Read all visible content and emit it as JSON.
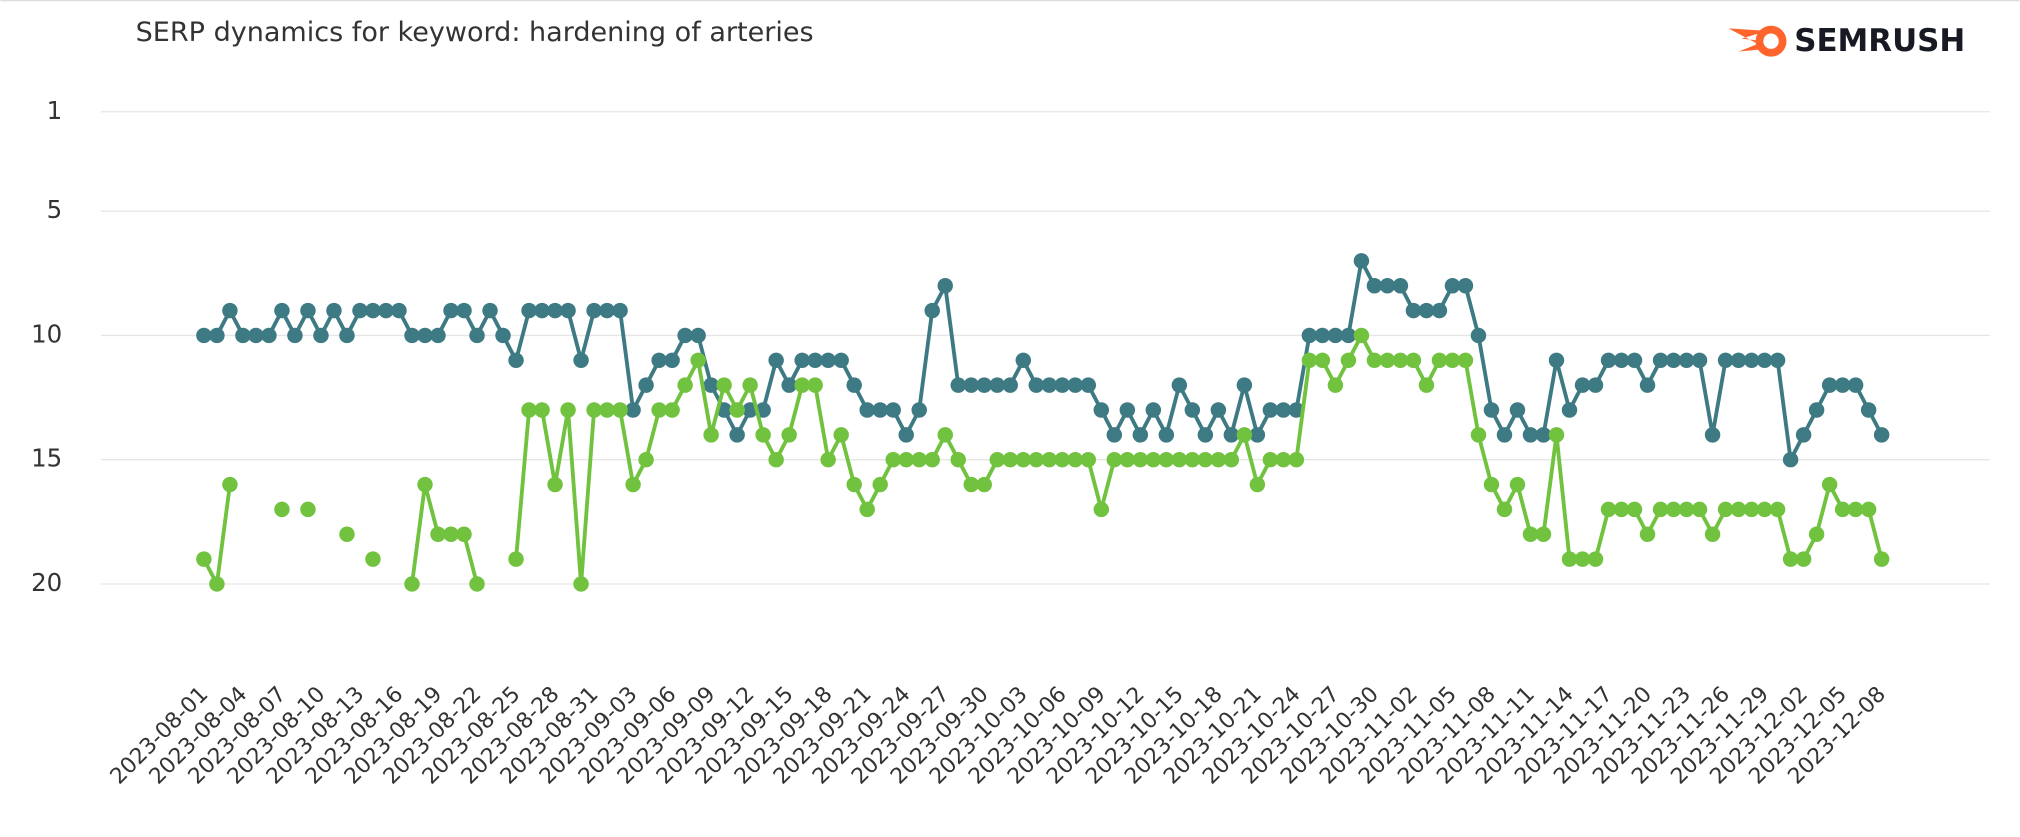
{
  "chart_data": {
    "type": "line",
    "title": "SERP dynamics for keyword: hardening of arteries",
    "logo": "SEMRUSH",
    "categories": [
      "2023-08-01",
      null,
      null,
      "2023-08-04",
      null,
      null,
      "2023-08-07",
      null,
      null,
      "2023-08-10",
      null,
      null,
      "2023-08-13",
      null,
      null,
      "2023-08-16",
      null,
      null,
      "2023-08-19",
      null,
      null,
      "2023-08-22",
      null,
      null,
      "2023-08-25",
      null,
      null,
      "2023-08-28",
      null,
      null,
      "2023-08-31",
      null,
      null,
      "2023-09-03",
      null,
      null,
      "2023-09-06",
      null,
      null,
      "2023-09-09",
      null,
      null,
      "2023-09-12",
      null,
      null,
      "2023-09-15",
      null,
      null,
      "2023-09-18",
      null,
      null,
      "2023-09-21",
      null,
      null,
      "2023-09-24",
      null,
      null,
      "2023-09-27",
      null,
      null,
      "2023-09-30",
      null,
      null,
      "2023-10-03",
      null,
      null,
      "2023-10-06",
      null,
      null,
      "2023-10-09",
      null,
      null,
      "2023-10-12",
      null,
      null,
      "2023-10-15",
      null,
      null,
      "2023-10-18",
      null,
      null,
      "2023-10-21",
      null,
      null,
      "2023-10-24",
      null,
      null,
      "2023-10-27",
      null,
      null,
      "2023-10-30",
      null,
      null,
      "2023-11-02",
      null,
      null,
      "2023-11-05",
      null,
      null,
      "2023-11-08",
      null,
      null,
      "2023-11-11",
      null,
      null,
      "2023-11-14",
      null,
      null,
      "2023-11-17",
      null,
      null,
      "2023-11-20",
      null,
      null,
      "2023-11-23",
      null,
      null,
      "2023-11-26",
      null,
      null,
      "2023-11-29",
      null,
      null,
      "2023-12-02",
      null,
      null,
      "2023-12-05",
      null,
      null,
      "2023-12-08"
    ],
    "series": [
      {
        "color": "#3e7a83",
        "values": [
          10,
          10,
          9,
          10,
          10,
          10,
          9,
          10,
          9,
          10,
          9,
          10,
          9,
          9,
          9,
          9,
          10,
          10,
          10,
          9,
          9,
          10,
          9,
          10,
          11,
          9,
          9,
          9,
          9,
          11,
          9,
          9,
          9,
          13,
          12,
          11,
          11,
          10,
          10,
          12,
          13,
          14,
          13,
          13,
          11,
          12,
          11,
          11,
          11,
          11,
          12,
          13,
          13,
          13,
          14,
          13,
          9,
          8,
          12,
          12,
          12,
          12,
          12,
          11,
          12,
          12,
          12,
          12,
          12,
          13,
          14,
          13,
          14,
          13,
          14,
          12,
          13,
          14,
          13,
          14,
          12,
          14,
          13,
          13,
          13,
          10,
          10,
          10,
          10,
          7,
          8,
          8,
          8,
          9,
          9,
          9,
          8,
          8,
          10,
          13,
          14,
          13,
          14,
          14,
          11,
          13,
          12,
          12,
          11,
          11,
          11,
          12,
          11,
          11,
          11,
          11,
          14,
          11,
          11,
          11,
          11,
          11,
          15,
          14,
          13,
          12,
          12,
          12,
          13,
          14
        ]
      },
      {
        "color": "#71c23f",
        "values": [
          19,
          20,
          16,
          null,
          null,
          null,
          17,
          null,
          17,
          null,
          null,
          18,
          null,
          19,
          null,
          null,
          20,
          16,
          18,
          18,
          18,
          20,
          null,
          null,
          19,
          13,
          13,
          16,
          13,
          20,
          13,
          13,
          13,
          16,
          15,
          13,
          13,
          12,
          11,
          14,
          12,
          13,
          12,
          14,
          15,
          14,
          12,
          12,
          15,
          14,
          16,
          17,
          16,
          15,
          15,
          15,
          15,
          14,
          15,
          16,
          16,
          15,
          15,
          15,
          15,
          15,
          15,
          15,
          15,
          17,
          15,
          15,
          15,
          15,
          15,
          15,
          15,
          15,
          15,
          15,
          14,
          16,
          15,
          15,
          15,
          11,
          11,
          12,
          11,
          10,
          11,
          11,
          11,
          11,
          12,
          11,
          11,
          11,
          14,
          16,
          17,
          16,
          18,
          18,
          14,
          19,
          19,
          19,
          17,
          17,
          17,
          18,
          17,
          17,
          17,
          17,
          18,
          17,
          17,
          17,
          17,
          17,
          19,
          19,
          18,
          16,
          17,
          17,
          17,
          19
        ]
      }
    ],
    "ylim": [
      22,
      0
    ],
    "yticks": [
      1,
      5,
      10,
      15,
      20
    ],
    "grid": true
  }
}
